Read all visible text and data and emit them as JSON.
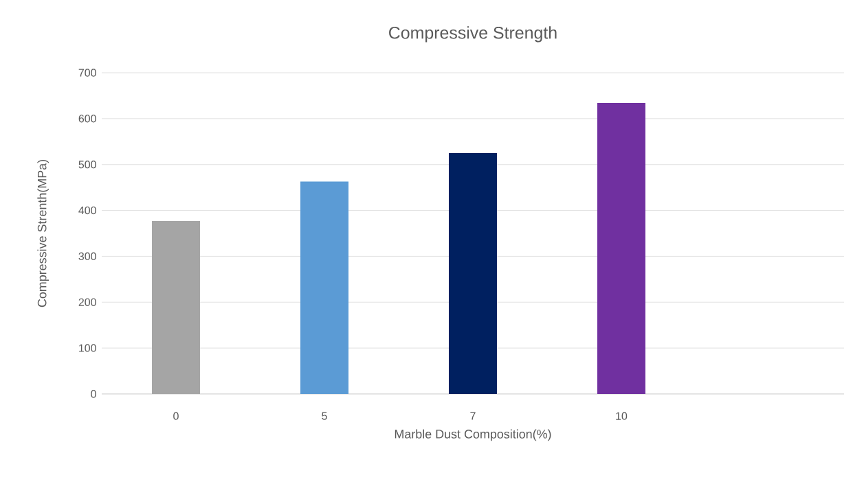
{
  "chart_data": {
    "type": "bar",
    "title": "Compressive Strength",
    "xlabel": "Marble Dust Composition(%)",
    "ylabel": "Compressive Strenth(MPa)",
    "categories": [
      "0",
      "5",
      "7",
      "10",
      null
    ],
    "values": [
      377,
      463,
      525,
      634,
      null
    ],
    "colors": [
      "#a5a5a5",
      "#5b9bd5",
      "#002060",
      "#7030a0",
      "#ffffff"
    ],
    "ylim": [
      0,
      700
    ],
    "yticks": [
      0,
      100,
      200,
      300,
      400,
      500,
      600,
      700
    ],
    "grid": "y"
  }
}
